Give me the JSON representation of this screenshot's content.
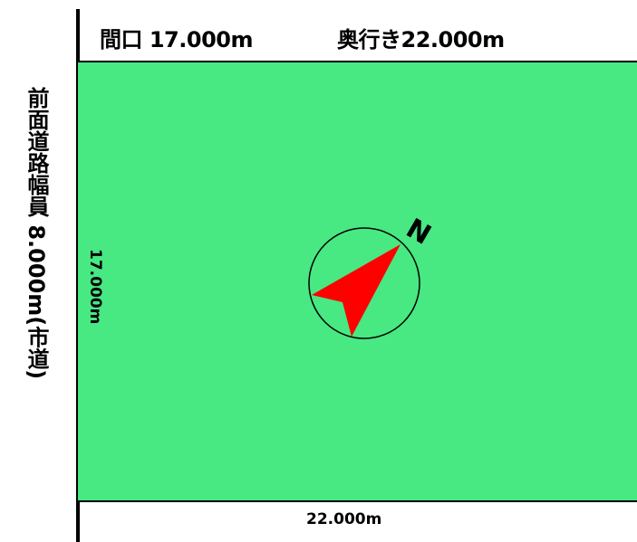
{
  "header": {
    "frontage": "間口 17.000m",
    "depth": "奥行き22.000m"
  },
  "road": {
    "label": "前面道路幅員 8.000m(市道)"
  },
  "dimensions": {
    "left": "17.000m",
    "bottom": "22.000m"
  },
  "compass": {
    "north_label": "N",
    "arrow_color": "#ff0000",
    "icon": "north-arrow-icon"
  },
  "colors": {
    "lot_fill": "#48e882",
    "lines": "#000000"
  }
}
